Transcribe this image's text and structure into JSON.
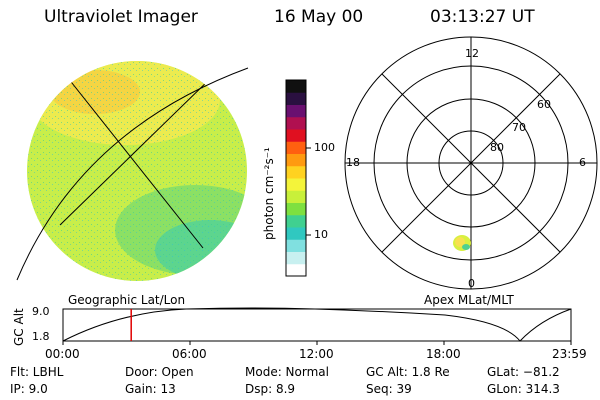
{
  "header": {
    "instrument": "Ultraviolet Imager",
    "date": "16 May 00",
    "time": "03:13:27 UT"
  },
  "colorbar": {
    "unit_label": "photon cm⁻²s⁻¹",
    "ticks": [
      "100",
      "10"
    ],
    "colors": [
      "#101010",
      "#2a1040",
      "#6a1070",
      "#b01050",
      "#e01020",
      "#ff6010",
      "#ff9a10",
      "#ffd220",
      "#f4f43a",
      "#c8f03a",
      "#7ee040",
      "#40d090",
      "#30c8c0",
      "#80e0e0",
      "#c8f0f0",
      "#ffffff"
    ]
  },
  "polar": {
    "mlt_labels": [
      "12",
      "18",
      "6",
      "0"
    ],
    "lat_labels": [
      "60",
      "70",
      "80"
    ]
  },
  "panel_labels": {
    "left": "Geographic Lat/Lon",
    "right": "Apex MLat/MLT"
  },
  "altitude_plot": {
    "ylabel": "GC Alt",
    "yticks": [
      "9.0",
      "1.8"
    ],
    "time_ticks": [
      "00:00",
      "06:00",
      "12:00",
      "18:00",
      "23:59"
    ],
    "marker_time_hours": 3.22
  },
  "status": {
    "filter": "Flt: LBHL",
    "ip": "IP:  9.0",
    "door": "Door: Open",
    "gain": "Gain: 13",
    "mode": "Mode: Normal",
    "dsp": "Dsp:     8.9",
    "gc_alt": "GC Alt: 1.8 Re",
    "seq": "Seq: 39",
    "glat": "GLat: −81.2",
    "glon": "GLon: 314.3"
  }
}
